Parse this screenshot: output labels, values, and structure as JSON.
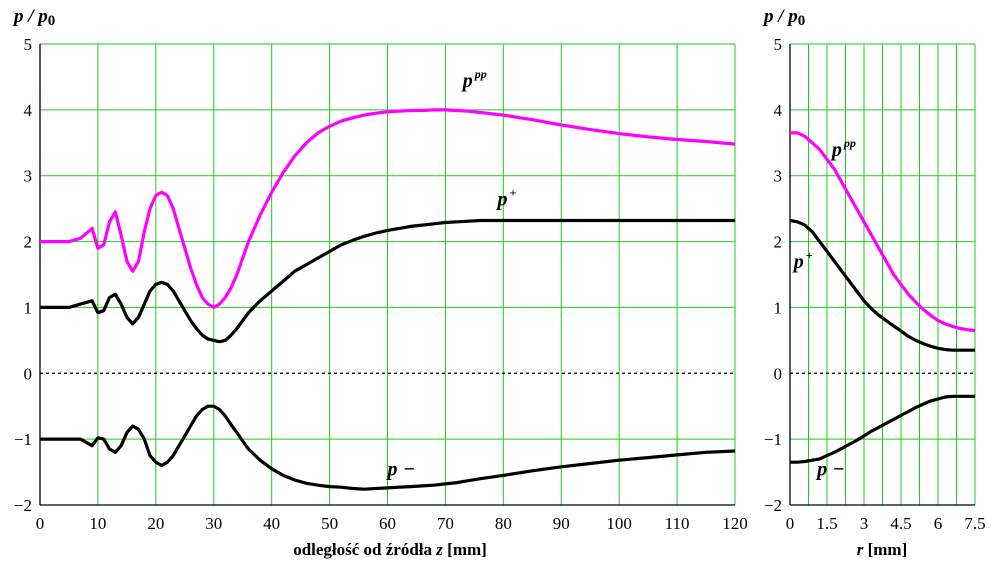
{
  "chart_data": [
    {
      "type": "line",
      "ylabel": "p / p0",
      "xlabel": "odległość od źródła  z  [mm]",
      "xlim": [
        0,
        120
      ],
      "ylim": [
        -2,
        5
      ],
      "xticks": [
        0,
        10,
        20,
        30,
        40,
        50,
        60,
        70,
        80,
        90,
        100,
        110,
        120
      ],
      "yticks": [
        -2,
        -1,
        0,
        1,
        2,
        3,
        4,
        5
      ],
      "grid": true,
      "zero_line": "dashed",
      "series": [
        {
          "name": "p^pp",
          "label_base": "p",
          "label_sup": "pp",
          "label_at": [
            73,
            4.35
          ],
          "color": "#ff00ff",
          "x": [
            0,
            5,
            7,
            9,
            10,
            11,
            12,
            13,
            14,
            15,
            16,
            17,
            18,
            19,
            20,
            21,
            22,
            23,
            24,
            25,
            26,
            27,
            28,
            29,
            30,
            31,
            32,
            33,
            34,
            35,
            36,
            38,
            40,
            42,
            44,
            46,
            48,
            50,
            52,
            54,
            56,
            58,
            60,
            62,
            64,
            66,
            68,
            70,
            72,
            74,
            76,
            78,
            80,
            85,
            90,
            95,
            100,
            105,
            110,
            115,
            120
          ],
          "y": [
            2.0,
            2.0,
            2.05,
            2.2,
            1.9,
            1.95,
            2.3,
            2.45,
            2.1,
            1.7,
            1.55,
            1.7,
            2.15,
            2.5,
            2.7,
            2.75,
            2.7,
            2.5,
            2.2,
            1.9,
            1.6,
            1.35,
            1.15,
            1.05,
            1.0,
            1.05,
            1.15,
            1.3,
            1.5,
            1.75,
            2.0,
            2.4,
            2.75,
            3.05,
            3.3,
            3.5,
            3.65,
            3.75,
            3.83,
            3.88,
            3.92,
            3.95,
            3.97,
            3.98,
            3.99,
            3.99,
            4.0,
            4.0,
            3.99,
            3.98,
            3.96,
            3.94,
            3.92,
            3.85,
            3.77,
            3.7,
            3.64,
            3.59,
            3.55,
            3.52,
            3.48
          ]
        },
        {
          "name": "p+",
          "label_base": "p",
          "label_sup": "+",
          "label_at": [
            79,
            2.55
          ],
          "color": "#000000",
          "x": [
            0,
            5,
            7,
            9,
            10,
            11,
            12,
            13,
            14,
            15,
            16,
            17,
            18,
            19,
            20,
            21,
            22,
            23,
            24,
            25,
            26,
            27,
            28,
            29,
            30,
            31,
            32,
            33,
            34,
            35,
            36,
            38,
            40,
            42,
            44,
            46,
            48,
            50,
            52,
            54,
            56,
            58,
            60,
            62,
            64,
            66,
            68,
            70,
            72,
            74,
            76,
            80,
            90,
            100,
            110,
            120
          ],
          "y": [
            1.0,
            1.0,
            1.05,
            1.1,
            0.92,
            0.95,
            1.15,
            1.2,
            1.05,
            0.85,
            0.75,
            0.85,
            1.05,
            1.25,
            1.35,
            1.38,
            1.35,
            1.25,
            1.1,
            0.95,
            0.8,
            0.68,
            0.58,
            0.52,
            0.5,
            0.48,
            0.5,
            0.58,
            0.68,
            0.8,
            0.92,
            1.1,
            1.25,
            1.4,
            1.55,
            1.65,
            1.75,
            1.85,
            1.95,
            2.02,
            2.08,
            2.13,
            2.17,
            2.2,
            2.23,
            2.25,
            2.27,
            2.29,
            2.3,
            2.31,
            2.32,
            2.32,
            2.32,
            2.32,
            2.32,
            2.32
          ]
        },
        {
          "name": "p−",
          "label_base": "p",
          "label_sup": "−",
          "label_at": [
            60,
            -1.55
          ],
          "color": "#000000",
          "x": [
            0,
            5,
            7,
            9,
            10,
            11,
            12,
            13,
            14,
            15,
            16,
            17,
            18,
            19,
            20,
            21,
            22,
            23,
            24,
            25,
            26,
            27,
            28,
            29,
            30,
            31,
            32,
            33,
            34,
            35,
            36,
            38,
            40,
            42,
            44,
            46,
            48,
            50,
            52,
            54,
            56,
            58,
            60,
            62,
            64,
            66,
            68,
            70,
            72,
            76,
            80,
            85,
            90,
            95,
            100,
            105,
            110,
            115,
            120
          ],
          "y": [
            -1.0,
            -1.0,
            -1.0,
            -1.1,
            -0.98,
            -1.0,
            -1.15,
            -1.2,
            -1.1,
            -0.9,
            -0.8,
            -0.85,
            -1.0,
            -1.25,
            -1.35,
            -1.4,
            -1.35,
            -1.25,
            -1.1,
            -0.95,
            -0.8,
            -0.65,
            -0.55,
            -0.5,
            -0.5,
            -0.55,
            -0.65,
            -0.78,
            -0.9,
            -1.03,
            -1.15,
            -1.32,
            -1.45,
            -1.55,
            -1.62,
            -1.67,
            -1.7,
            -1.72,
            -1.73,
            -1.75,
            -1.76,
            -1.75,
            -1.74,
            -1.73,
            -1.72,
            -1.71,
            -1.7,
            -1.68,
            -1.66,
            -1.6,
            -1.55,
            -1.48,
            -1.42,
            -1.37,
            -1.32,
            -1.28,
            -1.24,
            -1.2,
            -1.18
          ]
        }
      ]
    },
    {
      "type": "line",
      "ylabel": "p / p0",
      "xlabel": "r [mm]",
      "xlim": [
        0,
        7.5
      ],
      "ylim": [
        -2,
        5
      ],
      "xticks": [
        0,
        1.5,
        3,
        4.5,
        6,
        7.5
      ],
      "xtick_labels": [
        "0",
        "1.5",
        "3",
        "4.5",
        "6",
        "7.5"
      ],
      "yticks": [
        -2,
        -1,
        0,
        1,
        2,
        3,
        4,
        5
      ],
      "grid_x_step": 0.75,
      "grid": true,
      "zero_line": "dashed",
      "series": [
        {
          "name": "p^pp",
          "label_base": "p",
          "label_sup": "pp",
          "label_at": [
            1.7,
            3.3
          ],
          "color": "#ff00ff",
          "x": [
            0,
            0.3,
            0.6,
            0.9,
            1.2,
            1.5,
            1.8,
            2.1,
            2.4,
            2.7,
            3.0,
            3.3,
            3.6,
            3.9,
            4.2,
            4.5,
            4.8,
            5.1,
            5.4,
            5.7,
            6.0,
            6.3,
            6.6,
            6.9,
            7.2,
            7.5
          ],
          "y": [
            3.65,
            3.65,
            3.6,
            3.5,
            3.4,
            3.25,
            3.1,
            2.9,
            2.7,
            2.5,
            2.3,
            2.1,
            1.9,
            1.7,
            1.5,
            1.35,
            1.2,
            1.08,
            0.97,
            0.88,
            0.8,
            0.75,
            0.71,
            0.68,
            0.66,
            0.65
          ]
        },
        {
          "name": "p+",
          "label_base": "p",
          "label_sup": "+",
          "label_at": [
            0.15,
            1.6
          ],
          "color": "#000000",
          "x": [
            0,
            0.3,
            0.6,
            0.9,
            1.2,
            1.5,
            1.8,
            2.1,
            2.4,
            2.7,
            3.0,
            3.3,
            3.6,
            3.9,
            4.2,
            4.5,
            4.8,
            5.1,
            5.4,
            5.7,
            6.0,
            6.3,
            6.6,
            6.9,
            7.2,
            7.5
          ],
          "y": [
            2.32,
            2.3,
            2.25,
            2.15,
            2.0,
            1.85,
            1.7,
            1.55,
            1.4,
            1.25,
            1.1,
            0.98,
            0.88,
            0.8,
            0.72,
            0.64,
            0.56,
            0.5,
            0.45,
            0.41,
            0.38,
            0.36,
            0.35,
            0.35,
            0.35,
            0.35
          ]
        },
        {
          "name": "p−",
          "label_base": "p",
          "label_sup": "−",
          "label_at": [
            1.1,
            -1.55
          ],
          "color": "#000000",
          "x": [
            0,
            0.3,
            0.6,
            0.9,
            1.2,
            1.5,
            1.8,
            2.1,
            2.4,
            2.7,
            3.0,
            3.3,
            3.6,
            3.9,
            4.2,
            4.5,
            4.8,
            5.1,
            5.4,
            5.7,
            6.0,
            6.3,
            6.6,
            6.9,
            7.2,
            7.5
          ],
          "y": [
            -1.35,
            -1.35,
            -1.34,
            -1.32,
            -1.3,
            -1.25,
            -1.2,
            -1.14,
            -1.08,
            -1.02,
            -0.95,
            -0.88,
            -0.82,
            -0.76,
            -0.7,
            -0.64,
            -0.58,
            -0.52,
            -0.47,
            -0.42,
            -0.39,
            -0.36,
            -0.35,
            -0.35,
            -0.35,
            -0.35
          ]
        }
      ]
    }
  ]
}
